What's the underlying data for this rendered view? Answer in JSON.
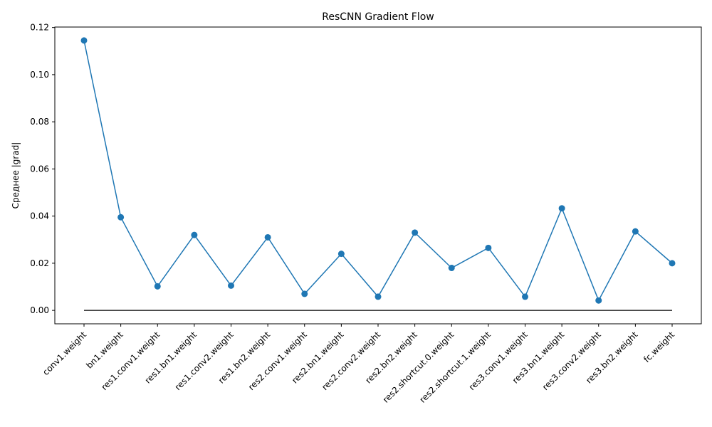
{
  "chart_data": {
    "type": "line",
    "title": "ResCNN Gradient Flow",
    "xlabel": "",
    "ylabel": "Среднее |grad|",
    "categories": [
      "conv1.weight",
      "bn1.weight",
      "res1.conv1.weight",
      "res1.bn1.weight",
      "res1.conv2.weight",
      "res1.bn2.weight",
      "res2.conv1.weight",
      "res2.bn1.weight",
      "res2.conv2.weight",
      "res2.bn2.weight",
      "res2.shortcut.0.weight",
      "res2.shortcut.1.weight",
      "res3.conv1.weight",
      "res3.bn1.weight",
      "res3.conv2.weight",
      "res3.bn2.weight",
      "fc.weight"
    ],
    "series": [
      {
        "values": [
          0.1145,
          0.0395,
          0.0102,
          0.032,
          0.0105,
          0.031,
          0.007,
          0.024,
          0.0058,
          0.033,
          0.018,
          0.0265,
          0.0058,
          0.0433,
          0.0042,
          0.0335,
          0.02
        ],
        "color": "#1f77b4",
        "marker": "circle"
      }
    ],
    "baseline": {
      "value": 0,
      "color": "#000000"
    },
    "ylim": [
      -0.0057,
      0.1202
    ],
    "yticks": [
      "0.00",
      "0.02",
      "0.04",
      "0.06",
      "0.08",
      "0.10",
      "0.12"
    ],
    "yticks_values": [
      0,
      0.02,
      0.04,
      0.06,
      0.08,
      0.1,
      0.12
    ],
    "grid": false,
    "legend": "none"
  }
}
